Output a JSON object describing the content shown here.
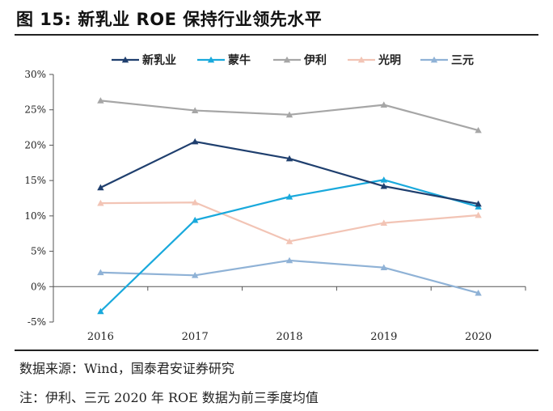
{
  "title": "图 15:  新乳业 ROE 保持行业领先水平",
  "source": "数据来源：Wind，国泰君安证券研究",
  "note": "注：伊利、三元 2020 年 ROE 数据为前三季度均值",
  "chart_data": {
    "type": "line",
    "categories": [
      "2016",
      "2017",
      "2018",
      "2019",
      "2020"
    ],
    "ylim": [
      -5,
      30
    ],
    "yticks": [
      -5,
      0,
      5,
      10,
      15,
      20,
      25,
      30
    ],
    "ytick_labels": [
      "-5%",
      "0%",
      "5%",
      "10%",
      "15%",
      "20%",
      "25%",
      "30%"
    ],
    "xlabel": "",
    "ylabel": "",
    "legend_position": "top",
    "series": [
      {
        "name": "新乳业",
        "color": "#1f3f6e",
        "values": [
          14.0,
          20.5,
          18.1,
          14.2,
          11.7
        ]
      },
      {
        "name": "蒙牛",
        "color": "#19a9dc",
        "values": [
          -3.5,
          9.4,
          12.7,
          15.1,
          11.3
        ]
      },
      {
        "name": "伊利",
        "color": "#a6a6a6",
        "values": [
          26.3,
          24.9,
          24.3,
          25.7,
          22.1
        ]
      },
      {
        "name": "光明",
        "color": "#f2c4b5",
        "values": [
          11.8,
          11.9,
          6.4,
          9.0,
          10.1
        ]
      },
      {
        "name": "三元",
        "color": "#8fb2d6",
        "values": [
          2.0,
          1.6,
          3.7,
          2.7,
          -0.9
        ]
      }
    ]
  }
}
